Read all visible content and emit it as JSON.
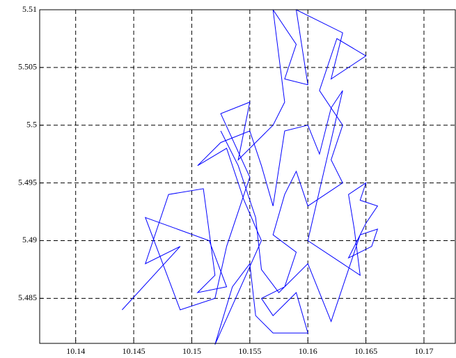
{
  "chart_data": {
    "type": "line",
    "color": "#0000ff",
    "grid": true,
    "xlim": [
      10.1369,
      10.1727
    ],
    "ylim": [
      5.4811,
      5.51
    ],
    "xticks": [
      10.14,
      10.145,
      10.15,
      10.155,
      10.16,
      10.165,
      10.17
    ],
    "yticks": [
      5.485,
      5.49,
      5.495,
      5.5,
      5.505,
      5.51
    ],
    "x": [
      10.144,
      10.149,
      10.146,
      10.148,
      10.151,
      10.152,
      10.1505,
      10.153,
      10.1515,
      10.146,
      10.149,
      10.152,
      10.153,
      10.155,
      10.1525,
      10.155,
      10.154,
      10.157,
      10.158,
      10.157,
      10.159,
      10.158,
      10.16,
      10.159,
      10.163,
      10.162,
      10.165,
      10.1625,
      10.161,
      10.163,
      10.162,
      10.163,
      10.16,
      10.159,
      10.158,
      10.157,
      10.159,
      10.158,
      10.156,
      10.157,
      10.159,
      10.16,
      10.157,
      10.1555,
      10.155,
      10.1535,
      10.152,
      10.156,
      10.1545,
      10.153,
      10.1505,
      10.1525,
      10.155,
      10.156,
      10.157,
      10.158,
      10.16,
      10.161,
      10.162,
      10.163,
      10.16,
      10.163,
      10.1645,
      10.164,
      10.1635,
      10.165,
      10.1645,
      10.166,
      10.165,
      10.1635,
      10.1655,
      10.166,
      10.1645,
      10.162,
      10.16,
      10.1575,
      10.156,
      10.1555,
      10.154,
      10.1525
    ],
    "y": [
      5.484,
      5.4895,
      5.488,
      5.494,
      5.4945,
      5.487,
      5.4855,
      5.486,
      5.49,
      5.492,
      5.484,
      5.485,
      5.4895,
      5.4955,
      5.501,
      5.502,
      5.497,
      5.5,
      5.502,
      5.51,
      5.507,
      5.504,
      5.5035,
      5.51,
      5.508,
      5.504,
      5.506,
      5.5075,
      5.503,
      5.5,
      5.497,
      5.495,
      5.493,
      5.496,
      5.494,
      5.4905,
      5.489,
      5.486,
      5.485,
      5.4835,
      5.4855,
      5.482,
      5.482,
      5.4835,
      5.488,
      5.486,
      5.481,
      5.49,
      5.4935,
      5.498,
      5.4965,
      5.4985,
      5.4995,
      5.4965,
      5.493,
      5.4995,
      5.5,
      5.4975,
      5.5015,
      5.503,
      5.49,
      5.488,
      5.487,
      5.491,
      5.494,
      5.495,
      5.4935,
      5.493,
      5.4915,
      5.4885,
      5.4895,
      5.491,
      5.4905,
      5.483,
      5.488,
      5.4855,
      5.4875,
      5.492,
      5.4965,
      5.4995
    ]
  }
}
